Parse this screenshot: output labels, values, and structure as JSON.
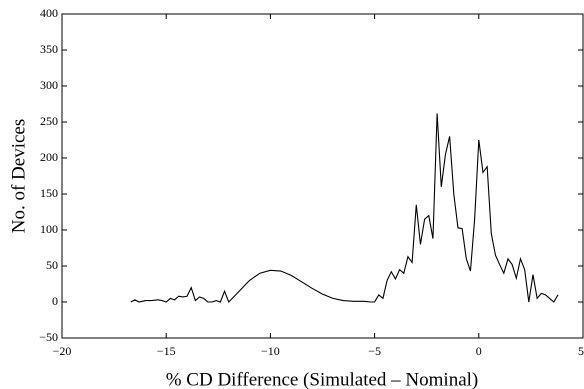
{
  "chart_data": {
    "type": "line",
    "x_label": "% CD Difference (Simulated – Nominal)",
    "y_label": "No. of Devices",
    "xlim": [
      -20,
      5
    ],
    "ylim": [
      -50,
      400
    ],
    "xticks": [
      {
        "value": -20,
        "label": "−20"
      },
      {
        "value": -15,
        "label": "−15"
      },
      {
        "value": -10,
        "label": "−10"
      },
      {
        "value": -5,
        "label": "−5"
      },
      0,
      5
    ],
    "yticks": [
      {
        "value": -50,
        "label": "−50"
      },
      0,
      50,
      100,
      150,
      200,
      250,
      300,
      350,
      400
    ],
    "color": "#000000",
    "x": [
      -16.7,
      -16.5,
      -16.3,
      -16.0,
      -15.7,
      -15.4,
      -15.2,
      -15.0,
      -14.8,
      -14.6,
      -14.4,
      -14.2,
      -14.0,
      -13.8,
      -13.6,
      -13.4,
      -13.2,
      -13.0,
      -12.8,
      -12.6,
      -12.4,
      -12.2,
      -12.0,
      -11.5,
      -11.0,
      -10.5,
      -10.0,
      -9.5,
      -9.0,
      -8.5,
      -8.0,
      -7.5,
      -7.0,
      -6.5,
      -6.0,
      -5.5,
      -5.2,
      -5.0,
      -4.8,
      -4.6,
      -4.4,
      -4.2,
      -4.0,
      -3.8,
      -3.6,
      -3.4,
      -3.2,
      -3.0,
      -2.8,
      -2.6,
      -2.4,
      -2.2,
      -2.0,
      -1.8,
      -1.6,
      -1.4,
      -1.2,
      -1.0,
      -0.8,
      -0.6,
      -0.4,
      -0.2,
      0.0,
      0.2,
      0.4,
      0.6,
      0.8,
      1.0,
      1.2,
      1.4,
      1.6,
      1.8,
      2.0,
      2.2,
      2.4,
      2.6,
      2.8,
      3.0,
      3.2,
      3.4,
      3.6,
      3.8
    ],
    "values": [
      0,
      3,
      0,
      2,
      2,
      3,
      2,
      0,
      5,
      3,
      8,
      7,
      8,
      20,
      2,
      7,
      5,
      0,
      0,
      2,
      0,
      15,
      0,
      15,
      30,
      40,
      44,
      43,
      37,
      28,
      19,
      11,
      5,
      2,
      1,
      1,
      0,
      0,
      10,
      5,
      30,
      42,
      32,
      45,
      40,
      63,
      55,
      135,
      80,
      115,
      120,
      88,
      262,
      160,
      205,
      230,
      150,
      103,
      102,
      60,
      43,
      115,
      225,
      180,
      188,
      95,
      65,
      52,
      40,
      60,
      52,
      33,
      60,
      45,
      0,
      38,
      5,
      12,
      10,
      5,
      0,
      10
    ]
  }
}
